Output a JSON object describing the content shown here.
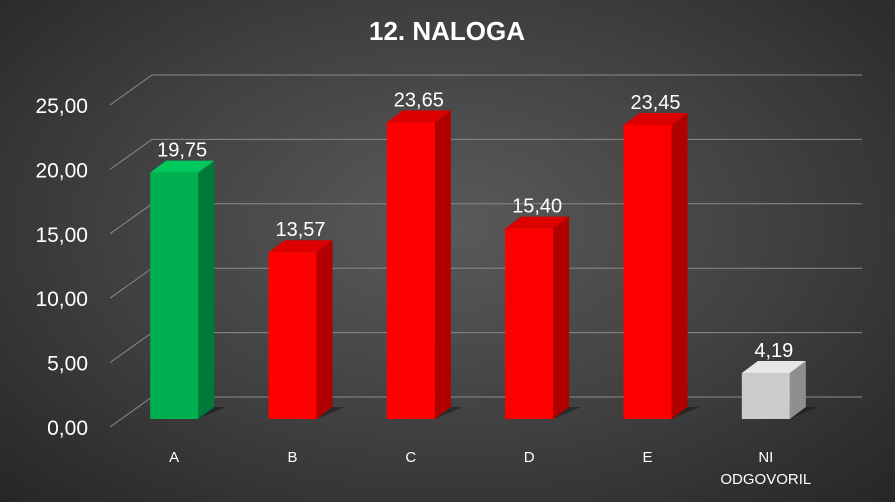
{
  "chart_data": {
    "type": "bar",
    "title": "12. NALOGA",
    "categories": [
      "A",
      "B",
      "C",
      "D",
      "E",
      "NI ODGOVORIL"
    ],
    "category_lines": [
      [
        "A"
      ],
      [
        "B"
      ],
      [
        "C"
      ],
      [
        "D"
      ],
      [
        "E"
      ],
      [
        "NI",
        "ODGOVORIL"
      ]
    ],
    "values": [
      19.75,
      13.57,
      23.65,
      15.4,
      23.45,
      4.19
    ],
    "value_labels": [
      "19,75",
      "13,57",
      "23,65",
      "15,40",
      "23,45",
      "4,19"
    ],
    "y_ticks": [
      "0,00",
      "5,00",
      "10,00",
      "15,00",
      "20,00",
      "25,00"
    ],
    "ylim": [
      0,
      25
    ],
    "grid": true,
    "legend": "none",
    "bar_colors": [
      "#00b050",
      "#ff0000",
      "#ff0000",
      "#ff0000",
      "#ff0000",
      "#cccccc"
    ],
    "bar_side_colors": [
      "#007a38",
      "#b00000",
      "#b00000",
      "#b00000",
      "#b00000",
      "#8f8f8f"
    ],
    "bar_top_colors": [
      "#00c85c",
      "#dd0000",
      "#dd0000",
      "#dd0000",
      "#dd0000",
      "#e6e6e6"
    ]
  }
}
